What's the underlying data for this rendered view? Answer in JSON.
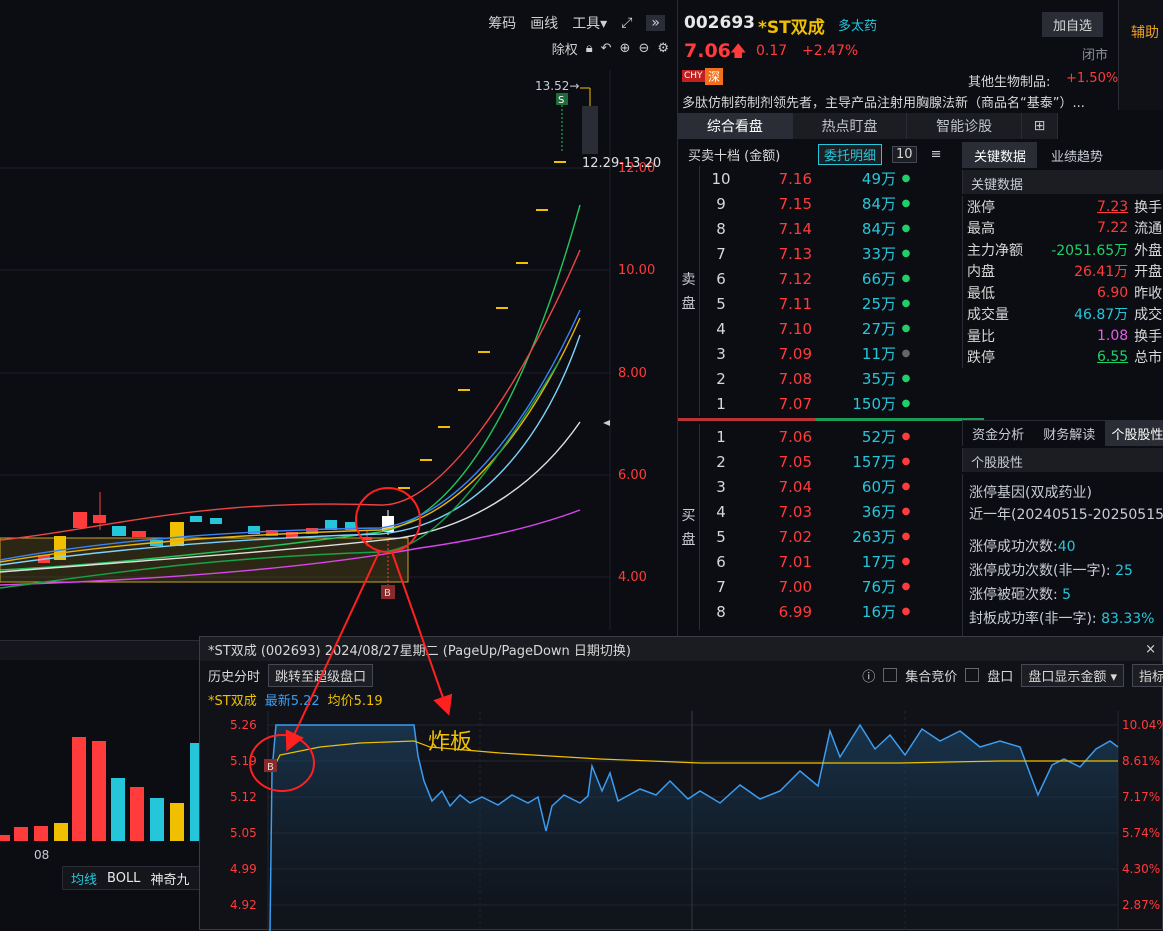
{
  "toolbar": {
    "chouma": "筹码",
    "huaxian": "画线",
    "gongju": "工具▾",
    "chuquan": "除权"
  },
  "chart": {
    "price_labels": [
      "12.00",
      "10.00",
      "8.00",
      "6.00",
      "4.00"
    ],
    "high_label": "13.52→",
    "date_range": "12.29-13.20",
    "s_marker": "S",
    "b_marker": "B",
    "x_tick": "08",
    "indicators": [
      "均线",
      "BOLL",
      "神奇九"
    ],
    "annotation": "炸板",
    "colors": {
      "up": "#ff3b3b",
      "down": "#26c6da",
      "ma1": "#22c55e",
      "ma2": "#ef4444",
      "ma3": "#eab308",
      "ma4": "#3b82f6",
      "ma5": "#e0e0e0",
      "ma6": "#d946ef"
    }
  },
  "quote": {
    "code": "002693",
    "name": "*ST双成",
    "tag": "多太药",
    "add_button": "加自选",
    "price": "7.06",
    "change": "0.17",
    "pct": "+2.47%",
    "status": "闭市",
    "badge1": "CHY",
    "badge2": "深",
    "sector": "其他生物制品:",
    "sector_pct": "+1.50%",
    "desc": "多肽仿制药制剂领先者，主导产品注射用胸腺法新（商品名“基泰”）...",
    "side_label": "辅助"
  },
  "tabs": [
    "综合看盘",
    "热点盯盘",
    "智能诊股"
  ],
  "orderbook": {
    "title": "买卖十档 (金额)",
    "detail_button": "委托明细",
    "levels_button": "10",
    "sell_label": [
      "卖",
      "盘"
    ],
    "buy_label": [
      "买",
      "盘"
    ],
    "asks": [
      {
        "n": "10",
        "p": "7.16",
        "v": "49万"
      },
      {
        "n": "9",
        "p": "7.15",
        "v": "84万"
      },
      {
        "n": "8",
        "p": "7.14",
        "v": "84万"
      },
      {
        "n": "7",
        "p": "7.13",
        "v": "33万"
      },
      {
        "n": "6",
        "p": "7.12",
        "v": "66万"
      },
      {
        "n": "5",
        "p": "7.11",
        "v": "25万"
      },
      {
        "n": "4",
        "p": "7.10",
        "v": "27万"
      },
      {
        "n": "3",
        "p": "7.09",
        "v": "11万"
      },
      {
        "n": "2",
        "p": "7.08",
        "v": "35万"
      },
      {
        "n": "1",
        "p": "7.07",
        "v": "150万"
      }
    ],
    "bids": [
      {
        "n": "1",
        "p": "7.06",
        "v": "52万"
      },
      {
        "n": "2",
        "p": "7.05",
        "v": "157万"
      },
      {
        "n": "3",
        "p": "7.04",
        "v": "60万"
      },
      {
        "n": "4",
        "p": "7.03",
        "v": "36万"
      },
      {
        "n": "5",
        "p": "7.02",
        "v": "263万"
      },
      {
        "n": "6",
        "p": "7.01",
        "v": "17万"
      },
      {
        "n": "7",
        "p": "7.00",
        "v": "76万"
      },
      {
        "n": "8",
        "p": "6.99",
        "v": "16万"
      }
    ]
  },
  "keydata": {
    "tab1": "关键数据",
    "tab2": "业绩趋势",
    "header": "关键数据",
    "rows": [
      {
        "l": "涨停",
        "v": "7.23",
        "r": "换手"
      },
      {
        "l": "最高",
        "v": "7.22",
        "r": "流通"
      },
      {
        "l": "主力净额",
        "v": "-2051.65万",
        "r": "外盘"
      },
      {
        "l": "内盘",
        "v": "26.41万",
        "r": "开盘"
      },
      {
        "l": "最低",
        "v": "6.90",
        "r": "昨收"
      },
      {
        "l": "成交量",
        "v": "46.87万",
        "r": "成交"
      },
      {
        "l": "量比",
        "v": "1.08",
        "r": "换手"
      },
      {
        "l": "跌停",
        "v": "6.55",
        "r": "总市"
      }
    ]
  },
  "profile": {
    "tab1": "资金分析",
    "tab2": "财务解读",
    "tab3": "个股股性",
    "header": "个股股性",
    "gene": "涨停基因(双成药业)",
    "period": "近一年(20240515-20250515)",
    "stat1_label": "涨停成功次数:",
    "stat1_value": "40",
    "stat2_label": "涨停成功次数(非一字):",
    "stat2_value": "25",
    "stat3_label": "涨停被砸次数:",
    "stat3_value": "5",
    "stat4_label": "封板成功率(非一字):",
    "stat4_value": "83.33%"
  },
  "popup": {
    "title": "*ST双成 (002693)  2024/08/27星期二  (PageUp/PageDown 日期切换)",
    "close": "×",
    "hist_label": "历史分时",
    "jump_button": "跳转至超级盘口",
    "auction_label": "集合竞价",
    "pankou_label": "盘口",
    "amount_select": "盘口显示金额 ▾",
    "indicator_button": "指标",
    "legend_name": "*ST双成",
    "legend_latest": "最新5.22",
    "legend_avg": "均价5.19",
    "yleft": [
      "5.26",
      "5.19",
      "5.12",
      "5.05",
      "4.99",
      "4.92"
    ],
    "yright": [
      "10.04%",
      "8.61%",
      "7.17%",
      "5.74%",
      "4.30%",
      "2.87%"
    ]
  }
}
